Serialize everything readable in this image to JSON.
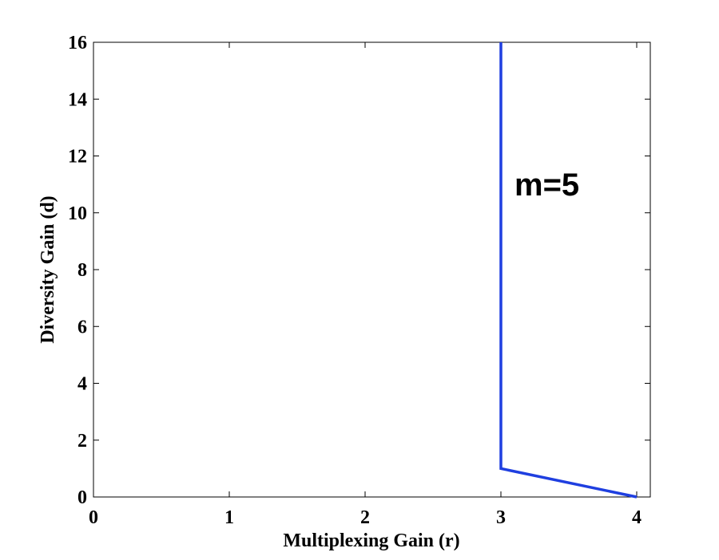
{
  "chart_data": {
    "type": "line",
    "xlabel": "Multiplexing Gain (r)",
    "ylabel": "Diversity Gain (d)",
    "xlim": [
      0,
      4.1
    ],
    "ylim": [
      0,
      16
    ],
    "xticks": [
      0,
      1,
      2,
      3,
      4
    ],
    "yticks": [
      0,
      2,
      4,
      6,
      8,
      10,
      12,
      14,
      16
    ],
    "grid": false,
    "series": [
      {
        "color": "#1f3fe0",
        "x": [
          3,
          3,
          4
        ],
        "y": [
          16,
          1,
          0
        ]
      }
    ],
    "annotations": [
      {
        "text": "m=5",
        "x": 3.1,
        "y": 11
      }
    ]
  }
}
